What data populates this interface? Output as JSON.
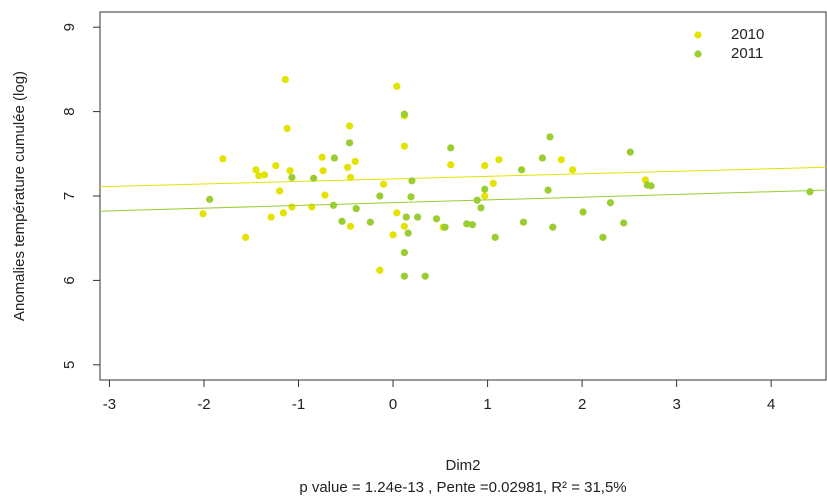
{
  "chart_data": {
    "type": "scatter",
    "x_label": "Dim2",
    "y_label": "Anomalies température cumulée (log)",
    "subtitle": "p value = 1.24e-13 , Pente =0.02981, R² = 31,5%",
    "xlim": [
      -3.1,
      4.58
    ],
    "ylim": [
      4.82,
      9.18
    ],
    "xticks": [
      -3,
      -2,
      -1,
      0,
      1,
      2,
      3,
      4
    ],
    "yticks": [
      5,
      6,
      7,
      8,
      9
    ],
    "legend": "top-right",
    "series": [
      {
        "name": "2010",
        "color": "#e3e300",
        "x": [
          -2.01,
          -1.8,
          -1.56,
          -1.45,
          -1.42,
          -1.36,
          -1.29,
          -1.24,
          -1.2,
          -1.16,
          -1.14,
          -1.12,
          -1.09,
          -1.07,
          -0.86,
          -0.75,
          -0.72,
          -0.74,
          -0.46,
          -0.48,
          -0.45,
          -0.4,
          -0.45,
          -0.14,
          -0.1,
          0.04,
          0.0,
          0.04,
          0.12,
          0.12,
          0.12,
          0.53,
          0.61,
          0.97,
          0.97,
          1.06,
          1.12,
          1.78,
          1.9,
          2.67
        ],
        "values": [
          6.79,
          7.44,
          6.51,
          7.31,
          7.24,
          7.25,
          6.75,
          7.36,
          7.06,
          6.8,
          8.38,
          7.8,
          7.3,
          6.87,
          6.87,
          7.46,
          7.01,
          7.3,
          7.83,
          7.34,
          7.22,
          7.41,
          6.64,
          6.12,
          7.14,
          8.3,
          6.54,
          6.8,
          7.59,
          7.95,
          6.64,
          6.63,
          7.37,
          7.0,
          7.36,
          7.15,
          7.43,
          7.43,
          7.31,
          7.19
        ],
        "trend": {
          "x": [
            -3.1,
            4.58
          ],
          "y": [
            7.11,
            7.34
          ]
        }
      },
      {
        "name": "2011",
        "color": "#9acd32",
        "x": [
          -1.94,
          -1.07,
          -0.84,
          -0.62,
          -0.63,
          -0.54,
          -0.39,
          -0.24,
          -0.14,
          -0.46,
          0.12,
          0.12,
          0.12,
          0.14,
          0.16,
          0.19,
          0.2,
          0.26,
          0.34,
          0.46,
          0.55,
          0.78,
          0.84,
          0.89,
          0.93,
          0.61,
          0.97,
          1.08,
          1.36,
          1.38,
          1.58,
          1.64,
          1.66,
          1.69,
          2.01,
          2.22,
          2.3,
          2.44,
          2.51,
          2.69,
          2.73,
          4.41
        ],
        "values": [
          6.96,
          7.22,
          7.21,
          7.45,
          6.89,
          6.7,
          6.85,
          6.69,
          7.0,
          7.63,
          7.97,
          6.33,
          6.05,
          6.75,
          6.56,
          6.99,
          7.18,
          6.75,
          6.05,
          6.73,
          6.63,
          6.67,
          6.66,
          6.95,
          6.86,
          7.57,
          7.08,
          6.51,
          7.31,
          6.69,
          7.45,
          7.07,
          7.7,
          6.63,
          6.81,
          6.51,
          6.92,
          6.68,
          7.52,
          7.13,
          7.12,
          7.05
        ],
        "trend": {
          "x": [
            -3.1,
            4.58
          ],
          "y": [
            6.82,
            7.07
          ]
        }
      }
    ]
  }
}
